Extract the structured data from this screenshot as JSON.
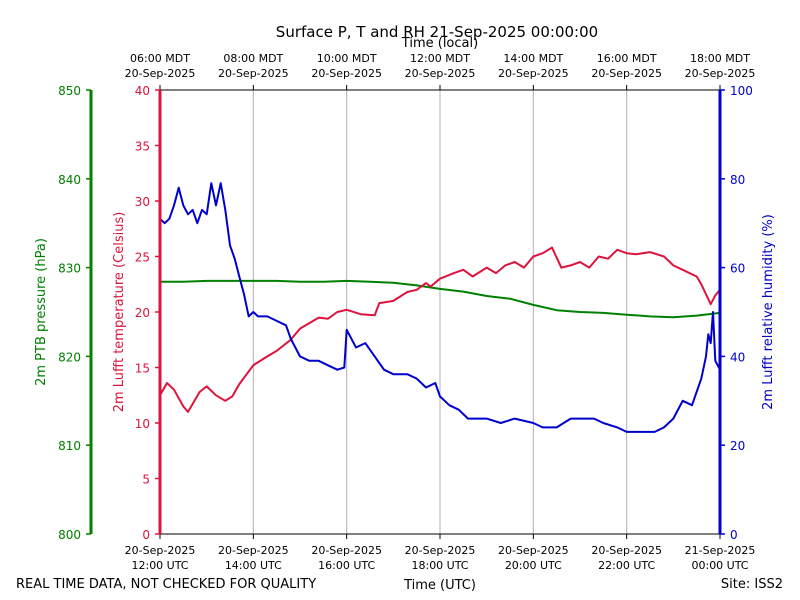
{
  "chart_data": {
    "type": "line",
    "title": "Surface P, T and RH 21-Sep-2025 00:00:00",
    "top_axis_title": "Time (local)",
    "xlabel": "Time (UTC)",
    "x_range_hours": [
      12.0,
      24.0
    ],
    "bottom_ticks": [
      {
        "hour": 12,
        "line1": "20-Sep-2025",
        "line2": "12:00 UTC"
      },
      {
        "hour": 14,
        "line1": "20-Sep-2025",
        "line2": "14:00 UTC"
      },
      {
        "hour": 16,
        "line1": "20-Sep-2025",
        "line2": "16:00 UTC"
      },
      {
        "hour": 18,
        "line1": "20-Sep-2025",
        "line2": "18:00 UTC"
      },
      {
        "hour": 20,
        "line1": "20-Sep-2025",
        "line2": "20:00 UTC"
      },
      {
        "hour": 22,
        "line1": "20-Sep-2025",
        "line2": "22:00 UTC"
      },
      {
        "hour": 24,
        "line1": "21-Sep-2025",
        "line2": "00:00 UTC"
      }
    ],
    "top_ticks": [
      {
        "hour": 12,
        "line1": "06:00 MDT",
        "line2": "20-Sep-2025"
      },
      {
        "hour": 14,
        "line1": "08:00 MDT",
        "line2": "20-Sep-2025"
      },
      {
        "hour": 16,
        "line1": "10:00 MDT",
        "line2": "20-Sep-2025"
      },
      {
        "hour": 18,
        "line1": "12:00 MDT",
        "line2": "20-Sep-2025"
      },
      {
        "hour": 20,
        "line1": "14:00 MDT",
        "line2": "20-Sep-2025"
      },
      {
        "hour": 22,
        "line1": "16:00 MDT",
        "line2": "20-Sep-2025"
      },
      {
        "hour": 24,
        "line1": "18:00 MDT",
        "line2": "20-Sep-2025"
      }
    ],
    "axes": {
      "pressure": {
        "label": "2m PTB pressure (hPa)",
        "ylim": [
          800,
          850
        ],
        "ticks": [
          800,
          810,
          820,
          830,
          840,
          850
        ],
        "color": "#008000"
      },
      "temperature": {
        "label": "2m Lufft temperature (Celsius)",
        "ylim": [
          0,
          40
        ],
        "ticks": [
          0,
          5,
          10,
          15,
          20,
          25,
          30,
          35,
          40
        ],
        "color": "#dc143c"
      },
      "humidity": {
        "label": "2m Lufft relative humidity (%)",
        "ylim": [
          0,
          100
        ],
        "ticks": [
          0,
          20,
          40,
          60,
          80,
          100
        ],
        "color": "#0000cd"
      }
    },
    "series": [
      {
        "name": "2m PTB pressure",
        "axis": "pressure",
        "color": "#008000",
        "x": [
          12.0,
          12.5,
          13.0,
          13.5,
          14.0,
          14.5,
          15.0,
          15.5,
          16.0,
          16.5,
          17.0,
          17.5,
          18.0,
          18.5,
          19.0,
          19.5,
          20.0,
          20.5,
          21.0,
          21.5,
          22.0,
          22.5,
          23.0,
          23.5,
          24.0
        ],
        "y": [
          828.4,
          828.4,
          828.5,
          828.5,
          828.5,
          828.5,
          828.4,
          828.4,
          828.5,
          828.4,
          828.3,
          828.0,
          827.6,
          827.3,
          826.8,
          826.5,
          825.8,
          825.2,
          825.0,
          824.9,
          824.7,
          824.5,
          824.4,
          824.6,
          824.9
        ]
      },
      {
        "name": "2m Lufft temperature",
        "axis": "temperature",
        "color": "#dc143c",
        "x": [
          12.0,
          12.15,
          12.3,
          12.5,
          12.6,
          12.85,
          13.0,
          13.2,
          13.4,
          13.55,
          13.7,
          14.0,
          14.3,
          14.5,
          14.8,
          15.0,
          15.2,
          15.4,
          15.6,
          15.8,
          16.0,
          16.3,
          16.6,
          16.7,
          17.0,
          17.3,
          17.5,
          17.7,
          17.8,
          18.0,
          18.3,
          18.5,
          18.7,
          19.0,
          19.2,
          19.4,
          19.6,
          19.8,
          20.0,
          20.2,
          20.4,
          20.6,
          20.8,
          21.0,
          21.2,
          21.4,
          21.6,
          21.8,
          22.0,
          22.2,
          22.5,
          22.8,
          23.0,
          23.2,
          23.5,
          23.6,
          23.8,
          23.9,
          24.0
        ],
        "y": [
          12.5,
          13.6,
          13.0,
          11.5,
          11.0,
          12.8,
          13.3,
          12.5,
          12.0,
          12.4,
          13.5,
          15.2,
          16.0,
          16.5,
          17.5,
          18.5,
          19.0,
          19.5,
          19.4,
          20.0,
          20.2,
          19.8,
          19.7,
          20.8,
          21.0,
          21.8,
          22.0,
          22.6,
          22.3,
          23.0,
          23.5,
          23.8,
          23.2,
          24.0,
          23.5,
          24.2,
          24.5,
          24.0,
          25.0,
          25.3,
          25.8,
          24.0,
          24.2,
          24.5,
          24.0,
          25.0,
          24.8,
          25.6,
          25.3,
          25.2,
          25.4,
          25.0,
          24.2,
          23.8,
          23.2,
          22.5,
          20.7,
          21.5,
          22.0
        ]
      },
      {
        "name": "2m Lufft relative humidity",
        "axis": "humidity",
        "color": "#0000cd",
        "x": [
          12.0,
          12.1,
          12.2,
          12.3,
          12.4,
          12.5,
          12.6,
          12.7,
          12.8,
          12.9,
          13.0,
          13.1,
          13.2,
          13.3,
          13.4,
          13.5,
          13.6,
          13.7,
          13.8,
          13.9,
          14.0,
          14.1,
          14.3,
          14.5,
          14.7,
          14.8,
          15.0,
          15.2,
          15.4,
          15.6,
          15.8,
          15.95,
          16.0,
          16.2,
          16.4,
          16.6,
          16.8,
          17.0,
          17.3,
          17.5,
          17.7,
          17.9,
          18.0,
          18.2,
          18.4,
          18.6,
          18.8,
          19.0,
          19.3,
          19.6,
          20.0,
          20.2,
          20.5,
          20.8,
          21.0,
          21.3,
          21.5,
          21.8,
          22.0,
          22.3,
          22.6,
          22.8,
          23.0,
          23.2,
          23.4,
          23.6,
          23.7,
          23.75,
          23.8,
          23.85,
          23.9,
          24.0
        ],
        "y": [
          71.0,
          70.0,
          71.0,
          74.0,
          78.0,
          74.0,
          72.0,
          73.0,
          70.0,
          73.0,
          72.0,
          79.0,
          74.0,
          79.0,
          73.0,
          65.0,
          62.0,
          58.0,
          54.0,
          49.0,
          50.0,
          49.0,
          49.0,
          48.0,
          47.0,
          44.0,
          40.0,
          39.0,
          39.0,
          38.0,
          37.0,
          37.5,
          46.0,
          42.0,
          43.0,
          40.0,
          37.0,
          36.0,
          36.0,
          35.0,
          33.0,
          34.0,
          31.0,
          29.0,
          28.0,
          26.0,
          26.0,
          26.0,
          25.0,
          26.0,
          25.0,
          24.0,
          24.0,
          26.0,
          26.0,
          26.0,
          25.0,
          24.0,
          23.0,
          23.0,
          23.0,
          24.0,
          26.0,
          30.0,
          29.0,
          35.0,
          40.0,
          45.0,
          43.0,
          50.0,
          39.0,
          37.0
        ]
      }
    ]
  },
  "footer": {
    "left_note": "REAL TIME DATA, NOT CHECKED FOR QUALITY",
    "site": "Site: ISS2"
  }
}
